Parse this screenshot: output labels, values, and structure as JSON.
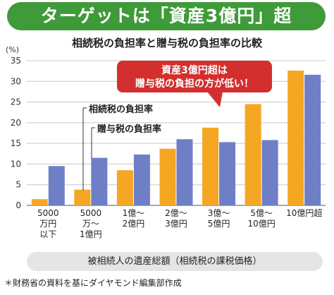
{
  "header": {
    "banner_title": "ターゲットは「資産3億円」超",
    "subtitle": "相続税の負担率と贈与税の負担率の比較"
  },
  "chart_data": {
    "type": "bar",
    "ylabel": "(%)",
    "xlabel": "被相続人の遺産総額（相続税の課税価格）",
    "ylim": [
      0,
      35
    ],
    "yticks": [
      0,
      5,
      10,
      15,
      20,
      25,
      30,
      35
    ],
    "grid": true,
    "categories": [
      [
        "5000",
        "万円",
        "以下"
      ],
      [
        "5000",
        "万〜",
        "1億円"
      ],
      [
        "1億〜",
        "2億円"
      ],
      [
        "2億〜",
        "3億円"
      ],
      [
        "3億〜",
        "5億円"
      ],
      [
        "5億〜",
        "10億円"
      ],
      [
        "10億円超"
      ]
    ],
    "series": [
      {
        "name": "相続税の負担率",
        "color": "#f5a623",
        "values": [
          1.5,
          3.8,
          8.5,
          13.7,
          18.8,
          24.5,
          32.6
        ]
      },
      {
        "name": "贈与税の負担率",
        "color": "#6f7fc6",
        "values": [
          9.5,
          11.5,
          12.3,
          16.0,
          15.3,
          15.8,
          31.6
        ]
      }
    ],
    "legend_placement": "left, with leader lines to bars",
    "callout": {
      "lines": [
        "資産3億円超は",
        "贈与税の負担の方が低い！"
      ],
      "color": "#d32f2f"
    }
  },
  "footer": {
    "source": "＊財務省の資料を基にダイヤモンド編集部作成"
  }
}
